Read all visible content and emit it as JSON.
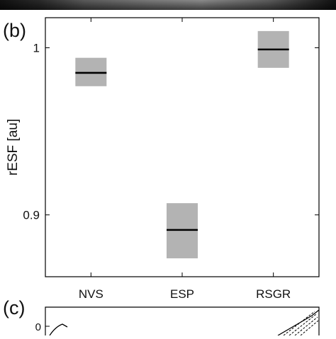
{
  "panels": {
    "b_label": "(b)",
    "c_label": "(c)",
    "c_tick_label": "0"
  },
  "chart_data": {
    "type": "box",
    "title": "",
    "xlabel": "",
    "ylabel": "rESF [au]",
    "categories": [
      "NVS",
      "ESP",
      "RSGR"
    ],
    "median": [
      0.985,
      0.891,
      0.999
    ],
    "box_low": [
      0.977,
      0.874,
      0.988
    ],
    "box_high": [
      0.994,
      0.907,
      1.01
    ],
    "ylim": [
      0.863,
      1.018
    ],
    "yticks": [
      0.9,
      1
    ],
    "ytick_labels": [
      "0.9",
      "1"
    ],
    "grid": false,
    "colors": {
      "box_fill": "#b3b3b3",
      "median": "#000000",
      "axis": "#000000"
    }
  }
}
